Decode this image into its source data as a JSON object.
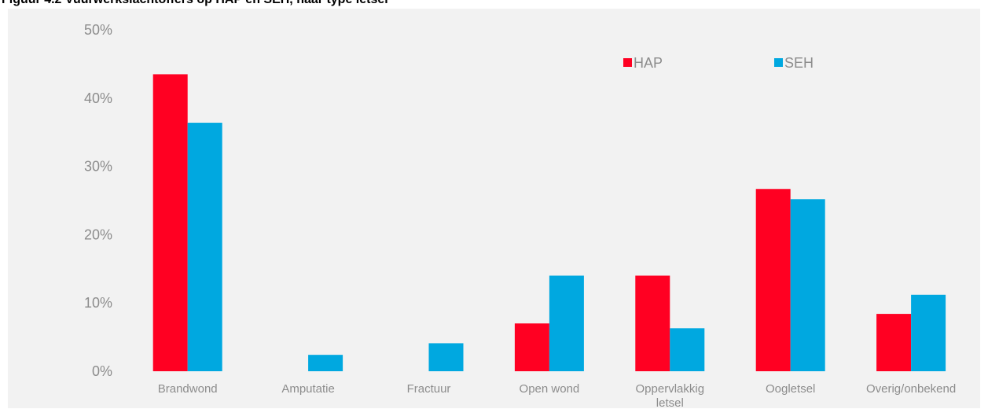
{
  "chart_data": {
    "type": "bar",
    "title": "Figuur 4.2 Vuurwerkslachtoffers op HAP en SEH, naar type letsel",
    "categories": [
      [
        "Brandwond"
      ],
      [
        "Amputatie"
      ],
      [
        "Fractuur"
      ],
      [
        "Open wond"
      ],
      [
        "Oppervlakkig",
        "letsel"
      ],
      [
        "Oogletsel"
      ],
      [
        "Overig/onbekend"
      ]
    ],
    "series": [
      {
        "name": "HAP",
        "color": "#ff0022",
        "values": [
          43.5,
          0,
          0,
          7.0,
          14.0,
          26.7,
          8.4
        ]
      },
      {
        "name": "SEH",
        "color": "#00a8e0",
        "values": [
          36.4,
          2.4,
          4.1,
          14.0,
          6.3,
          25.2,
          11.2
        ]
      }
    ],
    "yticks": [
      "0%",
      "10%",
      "20%",
      "30%",
      "40%",
      "50%"
    ],
    "ylim": [
      0,
      50
    ],
    "xlabel": "",
    "ylabel": "",
    "grid": false,
    "legend_position": "top-right"
  }
}
